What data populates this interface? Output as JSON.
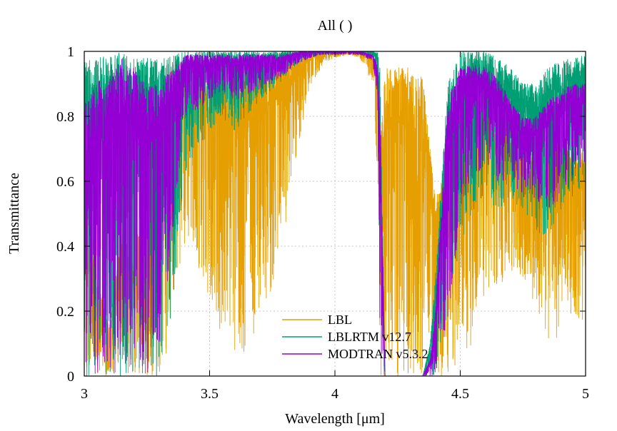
{
  "chart_data": {
    "type": "line",
    "title": "All ( )",
    "xlabel": "Wavelength  [μm]",
    "ylabel": "Transmittance",
    "xlim": [
      3,
      5
    ],
    "ylim": [
      0,
      1
    ],
    "x_ticks": [
      3,
      3.5,
      4,
      4.5,
      5
    ],
    "x_tick_labels": [
      "3",
      "3.5",
      "4",
      "4.5",
      "5"
    ],
    "y_ticks": [
      0,
      0.2,
      0.4,
      0.6,
      0.8,
      1
    ],
    "y_tick_labels": [
      "0",
      "0.2",
      "0.4",
      "0.6",
      "0.8",
      "1"
    ],
    "grid": true,
    "legend_position": "bottom-center",
    "sample_step_um": 0.005,
    "series": [
      {
        "name": "LBL",
        "color": "#E69F00",
        "x": [
          3.0,
          3.05,
          3.1,
          3.15,
          3.2,
          3.25,
          3.3,
          3.35,
          3.4,
          3.45,
          3.5,
          3.55,
          3.6,
          3.65,
          3.7,
          3.75,
          3.8,
          3.85,
          3.9,
          3.95,
          4.0,
          4.05,
          4.1,
          4.15,
          4.17,
          4.18,
          4.2,
          4.25,
          4.3,
          4.35,
          4.38,
          4.4,
          4.45,
          4.5,
          4.55,
          4.6,
          4.65,
          4.7,
          4.75,
          4.8,
          4.85,
          4.9,
          4.95,
          5.0
        ],
        "upper": [
          0.7,
          0.3,
          0.15,
          0.45,
          0.35,
          0.7,
          0.9,
          0.96,
          0.98,
          0.99,
          0.98,
          0.97,
          0.96,
          0.96,
          0.97,
          0.98,
          0.99,
          0.99,
          1.0,
          1.0,
          1.0,
          1.0,
          1.0,
          0.99,
          0.95,
          0.7,
          0.95,
          0.95,
          0.95,
          0.92,
          0.7,
          0.55,
          0.65,
          0.8,
          0.85,
          0.85,
          0.8,
          0.75,
          0.7,
          0.7,
          0.75,
          0.75,
          0.7,
          0.7
        ],
        "lower": [
          0.0,
          0.0,
          0.0,
          0.0,
          0.0,
          0.0,
          0.0,
          0.1,
          0.4,
          0.35,
          0.2,
          0.1,
          0.05,
          0.05,
          0.2,
          0.25,
          0.45,
          0.7,
          0.88,
          0.96,
          0.98,
          0.99,
          0.98,
          0.9,
          0.6,
          0.0,
          0.0,
          0.0,
          0.0,
          0.0,
          0.0,
          0.0,
          0.0,
          0.05,
          0.1,
          0.2,
          0.25,
          0.3,
          0.3,
          0.2,
          0.1,
          0.1,
          0.2,
          0.15
        ]
      },
      {
        "name": "LBLRTM v12.7",
        "color": "#009E73",
        "x": [
          3.0,
          3.05,
          3.1,
          3.15,
          3.2,
          3.25,
          3.3,
          3.35,
          3.4,
          3.45,
          3.5,
          3.55,
          3.6,
          3.65,
          3.7,
          3.75,
          3.8,
          3.85,
          3.9,
          3.95,
          4.0,
          4.05,
          4.1,
          4.15,
          4.17,
          4.18,
          4.2,
          4.25,
          4.3,
          4.35,
          4.38,
          4.4,
          4.45,
          4.5,
          4.55,
          4.6,
          4.65,
          4.7,
          4.75,
          4.8,
          4.85,
          4.9,
          4.95,
          5.0
        ],
        "upper": [
          0.97,
          0.98,
          0.99,
          1.0,
          0.99,
          0.98,
          0.98,
          0.99,
          1.0,
          1.0,
          1.0,
          1.0,
          1.0,
          1.0,
          1.0,
          1.0,
          1.0,
          1.0,
          1.0,
          1.0,
          1.0,
          1.0,
          1.0,
          1.0,
          1.0,
          0.95,
          0.0,
          0.0,
          0.0,
          0.0,
          0.1,
          0.3,
          0.9,
          1.0,
          1.0,
          1.0,
          0.98,
          0.95,
          0.9,
          0.9,
          0.95,
          0.97,
          0.98,
          0.99
        ],
        "lower": [
          0.0,
          0.0,
          0.0,
          0.0,
          0.0,
          0.0,
          0.0,
          0.2,
          0.6,
          0.7,
          0.75,
          0.8,
          0.75,
          0.8,
          0.85,
          0.88,
          0.92,
          0.96,
          0.98,
          0.99,
          0.99,
          1.0,
          0.99,
          0.98,
          0.9,
          0.1,
          0.0,
          0.0,
          0.0,
          0.0,
          0.0,
          0.0,
          0.2,
          0.4,
          0.5,
          0.55,
          0.5,
          0.55,
          0.5,
          0.45,
          0.4,
          0.5,
          0.55,
          0.6
        ]
      },
      {
        "name": "MODTRAN v5.3.2",
        "color": "#9400D3",
        "x": [
          3.0,
          3.05,
          3.1,
          3.15,
          3.2,
          3.25,
          3.3,
          3.35,
          3.4,
          3.45,
          3.5,
          3.55,
          3.6,
          3.65,
          3.7,
          3.75,
          3.8,
          3.85,
          3.9,
          3.95,
          4.0,
          4.05,
          4.1,
          4.15,
          4.17,
          4.18,
          4.2,
          4.25,
          4.3,
          4.35,
          4.38,
          4.4,
          4.45,
          4.5,
          4.55,
          4.6,
          4.65,
          4.7,
          4.75,
          4.8,
          4.85,
          4.9,
          4.95,
          5.0
        ],
        "upper": [
          0.85,
          0.9,
          0.95,
          0.98,
          0.95,
          0.9,
          0.9,
          0.95,
          0.99,
          0.99,
          0.99,
          0.99,
          0.99,
          0.99,
          0.99,
          0.99,
          0.99,
          1.0,
          1.0,
          1.0,
          1.0,
          1.0,
          1.0,
          0.99,
          0.96,
          0.8,
          0.0,
          0.0,
          0.0,
          0.0,
          0.05,
          0.2,
          0.85,
          0.95,
          0.96,
          0.95,
          0.92,
          0.85,
          0.8,
          0.8,
          0.85,
          0.88,
          0.9,
          0.9
        ],
        "lower": [
          0.0,
          0.0,
          0.0,
          0.0,
          0.0,
          0.0,
          0.1,
          0.4,
          0.8,
          0.82,
          0.85,
          0.88,
          0.85,
          0.86,
          0.88,
          0.9,
          0.93,
          0.96,
          0.98,
          0.99,
          0.99,
          0.99,
          0.99,
          0.97,
          0.85,
          0.1,
          0.0,
          0.0,
          0.0,
          0.0,
          0.0,
          0.0,
          0.15,
          0.5,
          0.6,
          0.65,
          0.6,
          0.6,
          0.55,
          0.55,
          0.5,
          0.55,
          0.6,
          0.65
        ]
      }
    ]
  }
}
